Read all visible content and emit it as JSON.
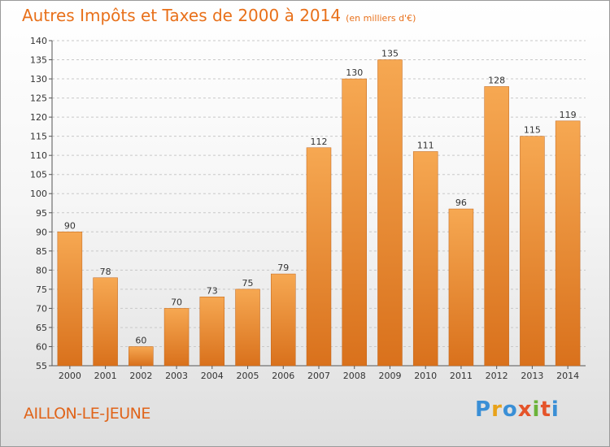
{
  "title": "Autres Impôts et Taxes de 2000 à 2014",
  "unit_note": "(en milliers d'€)",
  "commune": "AILLON-LE-JEUNE",
  "logo": {
    "letters": [
      "P",
      "r",
      "o",
      "x",
      "i",
      "t",
      "i"
    ],
    "colors": [
      "#3a8fd6",
      "#e8a21a",
      "#3a8fd6",
      "#e5542a",
      "#6bb33a",
      "#e5542a",
      "#3a8fd6"
    ]
  },
  "colors": {
    "title": "#e8701a",
    "bar_light": "#f6a852",
    "bar_dark": "#d9711c"
  },
  "chart_data": {
    "type": "bar",
    "title": "Autres Impôts et Taxes de 2000 à 2014",
    "categories": [
      "2000",
      "2001",
      "2002",
      "2003",
      "2004",
      "2005",
      "2006",
      "2007",
      "2008",
      "2009",
      "2010",
      "2011",
      "2012",
      "2013",
      "2014"
    ],
    "values": [
      90,
      78,
      60,
      70,
      73,
      75,
      79,
      112,
      130,
      135,
      111,
      96,
      128,
      115,
      119
    ],
    "ylim": [
      55,
      140
    ],
    "yticks": [
      55,
      60,
      65,
      70,
      75,
      80,
      85,
      90,
      95,
      100,
      105,
      110,
      115,
      120,
      125,
      130,
      135,
      140
    ],
    "xlabel": "",
    "ylabel": "",
    "grid": true
  }
}
